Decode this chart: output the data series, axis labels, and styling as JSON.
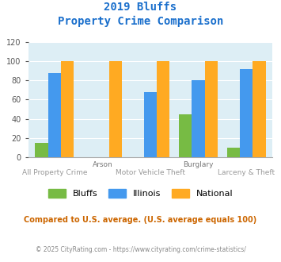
{
  "title_line1": "2019 Bluffs",
  "title_line2": "Property Crime Comparison",
  "title_color": "#1a6fcc",
  "categories": [
    "All Property Crime",
    "Arson",
    "Motor Vehicle Theft",
    "Burglary",
    "Larceny & Theft"
  ],
  "x_labels_row1": [
    "",
    "Arson",
    "",
    "Burglary",
    ""
  ],
  "x_labels_row2": [
    "All Property Crime",
    "",
    "Motor Vehicle Theft",
    "",
    "Larceny & Theft"
  ],
  "bluffs": [
    15,
    0,
    0,
    45,
    10
  ],
  "illinois": [
    88,
    0,
    68,
    80,
    92
  ],
  "national": [
    100,
    100,
    100,
    100,
    100
  ],
  "bluffs_color": "#77bb44",
  "illinois_color": "#4499ee",
  "national_color": "#ffaa22",
  "ylim": [
    0,
    120
  ],
  "yticks": [
    0,
    20,
    40,
    60,
    80,
    100,
    120
  ],
  "bg_color": "#ddeef5",
  "note_text": "Compared to U.S. average. (U.S. average equals 100)",
  "note_color": "#cc6600",
  "footer_text": "© 2025 CityRating.com - https://www.cityrating.com/crime-statistics/",
  "footer_color": "#888888",
  "row1_color": "#777777",
  "row2_color": "#999999"
}
